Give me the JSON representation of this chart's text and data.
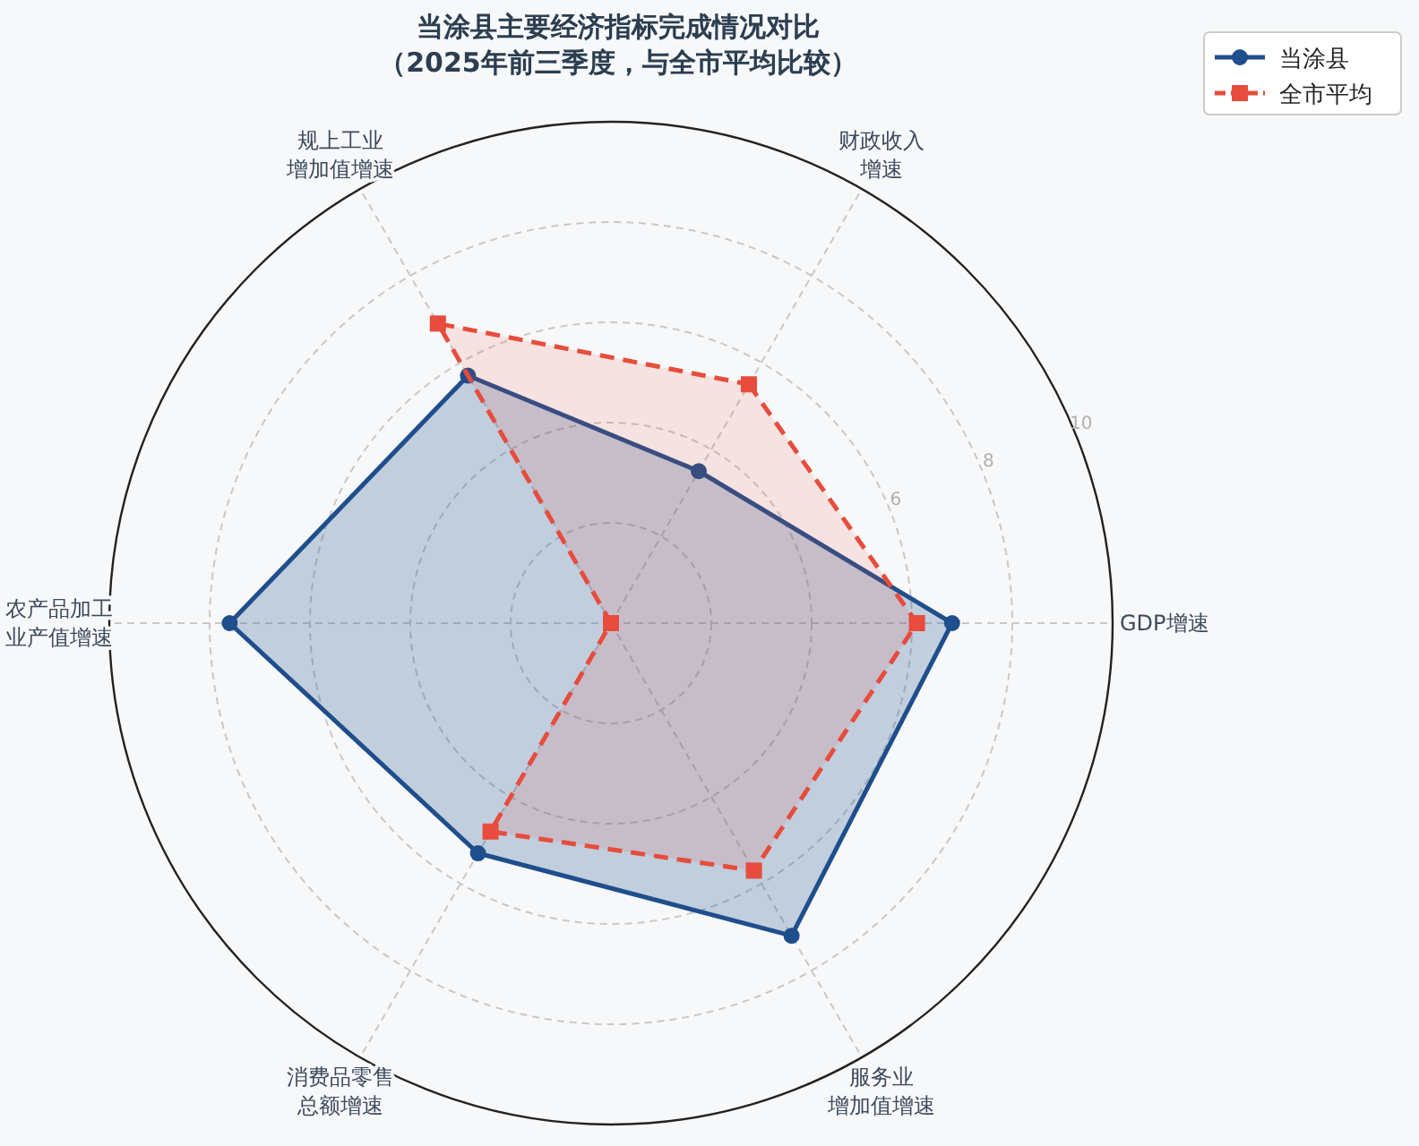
{
  "chart_data": {
    "type": "radar",
    "title": "当涂县主要经济指标完成情况对比（2025年前三季度，与全市平均比较）",
    "categories": [
      "财政收入增速",
      "GDP增速",
      "服务业增加值增速",
      "消费品零售总额增速",
      "农产品加工业产值增速",
      "规上工业增加值增速"
    ],
    "series": [
      {
        "name": "当涂县",
        "color": "#1f4e8c",
        "values": [
          3.5,
          6.8,
          7.2,
          5.3,
          7.6,
          5.7
        ],
        "marker": "circle",
        "line_style": "solid"
      },
      {
        "name": "全市平均",
        "color": "#e74c3c",
        "values": [
          5.5,
          6.1,
          5.7,
          4.8,
          0,
          6.9
        ],
        "marker": "square",
        "line_style": "dashed"
      }
    ],
    "ylim": [
      0,
      10
    ],
    "yticks": [
      6,
      8,
      10
    ],
    "grid": true,
    "legend": "top right"
  }
}
